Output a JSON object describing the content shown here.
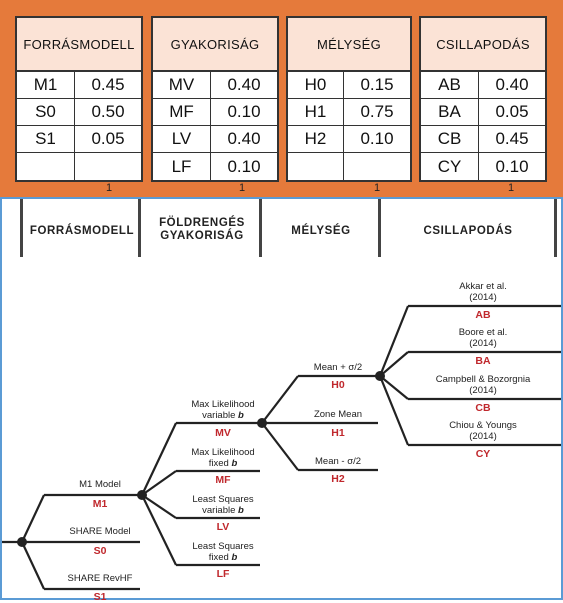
{
  "tables": [
    {
      "title": "FORRÁSMODELL",
      "rows": [
        [
          "M1",
          "0.45"
        ],
        [
          "S0",
          "0.50"
        ],
        [
          "S1",
          "0.05"
        ],
        [
          "",
          ""
        ]
      ],
      "index": "1"
    },
    {
      "title": "GYAKORISÁG",
      "rows": [
        [
          "MV",
          "0.40"
        ],
        [
          "MF",
          "0.10"
        ],
        [
          "LV",
          "0.40"
        ],
        [
          "LF",
          "0.10"
        ]
      ],
      "index": "1"
    },
    {
      "title": "MÉLYSÉG",
      "rows": [
        [
          "H0",
          "0.15"
        ],
        [
          "H1",
          "0.75"
        ],
        [
          "H2",
          "0.10"
        ],
        [
          "",
          ""
        ]
      ],
      "index": "1"
    },
    {
      "title": "CSILLAPODÁS",
      "rows": [
        [
          "AB",
          "0.40"
        ],
        [
          "BA",
          "0.05"
        ],
        [
          "CB",
          "0.45"
        ],
        [
          "CY",
          "0.10"
        ]
      ],
      "index": "1"
    }
  ],
  "tree": {
    "headers": {
      "source": "FORRÁSMODELL",
      "frequency_1": "FÖLDRENGÉS",
      "frequency_2": "GYAKORISÁG",
      "depth": "MÉLYSÉG",
      "attenuation": "CSILLAPODÁS"
    },
    "source": [
      {
        "label": "M1 Model",
        "code": "M1"
      },
      {
        "label": "SHARE Model",
        "code": "S0"
      },
      {
        "label": "SHARE RevHF",
        "code": "S1"
      }
    ],
    "frequency": [
      {
        "label1": "Max Likelihood",
        "label2": "variable",
        "var": "b",
        "code": "MV"
      },
      {
        "label1": "Max Likelihood",
        "label2": "fixed",
        "var": "b",
        "code": "MF"
      },
      {
        "label1": "Least Squares",
        "label2": "variable",
        "var": "b",
        "code": "LV"
      },
      {
        "label1": "Least Squares",
        "label2": "fixed",
        "var": "b",
        "code": "LF"
      }
    ],
    "depth": [
      {
        "label": "Mean + σ/2",
        "code": "H0"
      },
      {
        "label": "Zone Mean",
        "code": "H1"
      },
      {
        "label": "Mean - σ/2",
        "code": "H2"
      }
    ],
    "attenuation": [
      {
        "label1": "Akkar et al.",
        "label2": "(2014)",
        "code": "AB"
      },
      {
        "label1": "Boore et al.",
        "label2": "(2014)",
        "code": "BA"
      },
      {
        "label1": "Campbell & Bozorgnia",
        "label2": "(2014)",
        "code": "CB"
      },
      {
        "label1": "Chiou & Youngs",
        "label2": "(2014)",
        "code": "CY"
      }
    ]
  },
  "colors": {
    "panel": "#E57A3B",
    "header_fill": "#FBE3D6",
    "code_red": "#C0282D",
    "frame_blue": "#5B9BD5"
  }
}
